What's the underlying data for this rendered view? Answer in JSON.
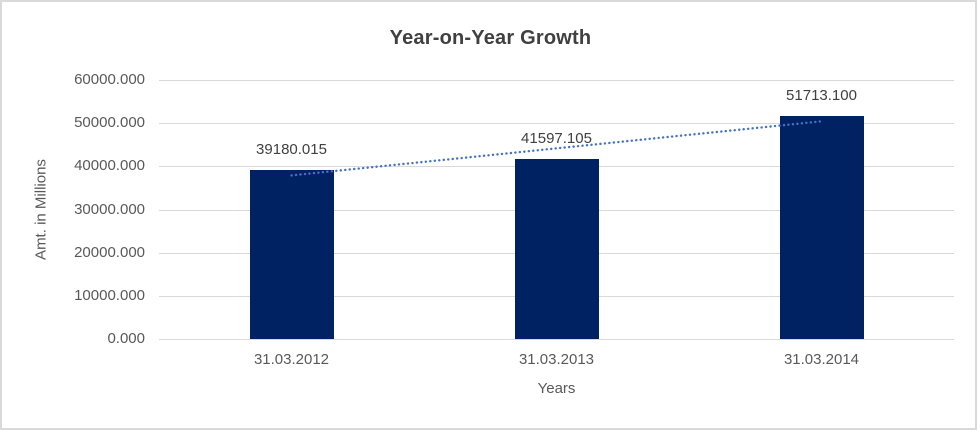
{
  "chart_data": {
    "type": "bar",
    "title": "Year-on-Year Growth",
    "xlabel": "Years",
    "ylabel": "Amt. in Millions",
    "categories": [
      "31.03.2012",
      "31.03.2013",
      "31.03.2014"
    ],
    "values": [
      39180.015,
      41597.105,
      51713.1
    ],
    "data_labels": [
      "39180.015",
      "41597.105",
      "51713.100"
    ],
    "y_tick_labels": [
      "0.000",
      "10000.000",
      "20000.000",
      "30000.000",
      "40000.000",
      "50000.000",
      "60000.000"
    ],
    "ylim": [
      0,
      60000
    ],
    "grid": true,
    "legend": "none",
    "colors": {
      "bar_fill": "#002263",
      "trendline": "#4472C4",
      "gridline": "#d9d9d9",
      "title_text": "#404040",
      "axis_text": "#595959"
    },
    "trendline": {
      "style": "dotted",
      "fit": "linear"
    }
  }
}
